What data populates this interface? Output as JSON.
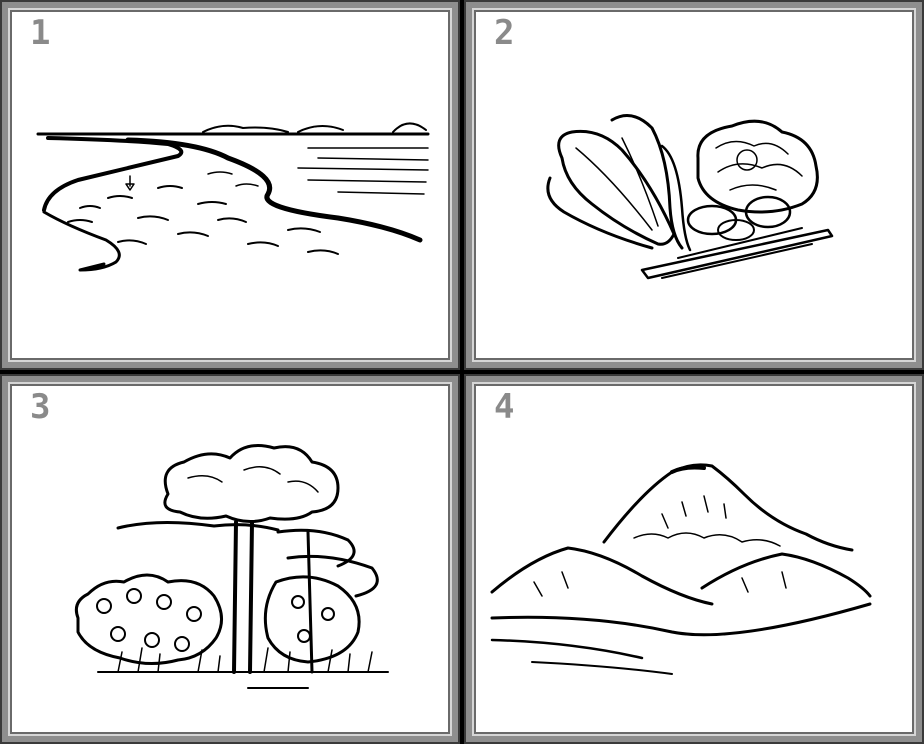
{
  "panels": [
    {
      "number": "1",
      "subject": "river-landscape"
    },
    {
      "number": "2",
      "subject": "vegetables-still-life"
    },
    {
      "number": "3",
      "subject": "trees"
    },
    {
      "number": "4",
      "subject": "mountains"
    }
  ],
  "colors": {
    "background": "#000000",
    "panel": "#ffffff",
    "frame": "#8e8e8e",
    "number": "#8a8a8a",
    "ink": "#000000"
  }
}
